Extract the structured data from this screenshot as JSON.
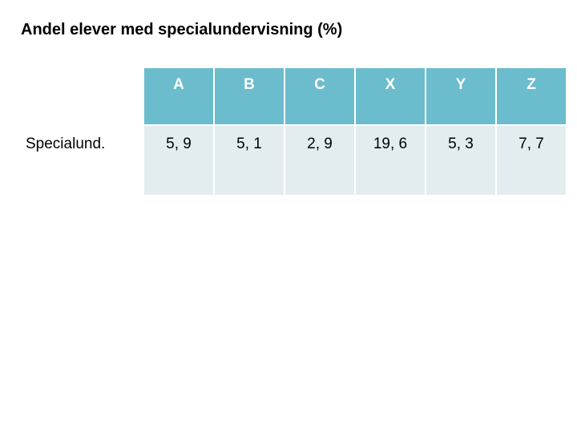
{
  "title": "Andel elever med specialundervisning (%)",
  "table": {
    "header_bg": "#6bbccc",
    "header_fg": "#ffffff",
    "body_bg": "#e3edef",
    "columns": [
      "A",
      "B",
      "C",
      "X",
      "Y",
      "Z"
    ],
    "rows": [
      {
        "label": "Specialund.",
        "values": [
          "5, 9",
          "5, 1",
          "2, 9",
          "19, 6",
          "5, 3",
          "7, 7"
        ]
      }
    ],
    "title_fontsize": 20,
    "cell_fontsize": 19
  }
}
